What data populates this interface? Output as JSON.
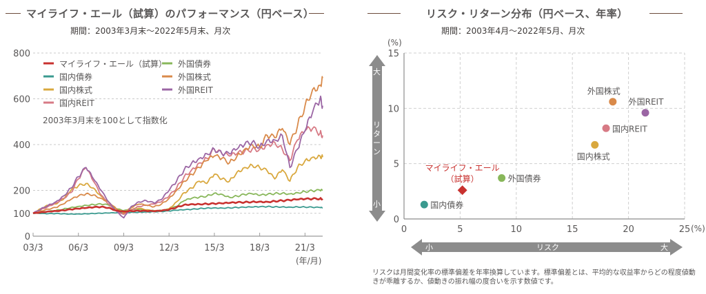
{
  "left": {
    "title": "マイライフ・エール（試算）のパフォーマンス（円ベース）",
    "period": "期間：2003年3月末〜2022年5月末、月次",
    "index_note": "2003年3月末を100として指数化",
    "x_unit": "(年/月)"
  },
  "right": {
    "title": "リスク・リターン分布（円ベース、年率）",
    "period": "期間：2003年4月〜2022年5月、月次",
    "y_unit": "(%)",
    "x_unit": "(%)",
    "y_arrow": {
      "label": "リターン",
      "high": "大",
      "low": "小"
    },
    "x_arrow": {
      "label": "リスク",
      "high": "大",
      "low": "小"
    },
    "footnote": "リスクは月間変化率の標準偏差を年率換算しています。標準偏差とは、平均的な収益率からどの程度値動きが乖離するか、値動きの振れ幅の度合いを示す数値です。"
  },
  "chart_data": [
    {
      "type": "line",
      "title": "マイライフ・エール（試算）のパフォーマンス（円ベース）",
      "subtitle": "期間：2003年3月末〜2022年5月末、月次",
      "xlabel": "(年/月)",
      "ylabel": "",
      "ylim": [
        0,
        800
      ],
      "yticks": [
        0,
        100,
        200,
        400,
        600,
        800
      ],
      "xticks": [
        "03/3",
        "06/3",
        "09/3",
        "12/3",
        "15/3",
        "18/3",
        "21/3"
      ],
      "grid": true,
      "legend": "top-left",
      "x": [
        "03/3",
        "03/9",
        "04/3",
        "04/9",
        "05/3",
        "05/9",
        "06/3",
        "06/9",
        "07/3",
        "07/9",
        "08/3",
        "08/9",
        "09/3",
        "09/9",
        "10/3",
        "10/9",
        "11/3",
        "11/9",
        "12/3",
        "12/9",
        "13/3",
        "13/9",
        "14/3",
        "14/9",
        "15/3",
        "15/9",
        "16/3",
        "16/9",
        "17/3",
        "17/9",
        "18/3",
        "18/9",
        "19/3",
        "19/9",
        "20/3",
        "20/9",
        "21/3",
        "21/9",
        "22/3",
        "22/5"
      ],
      "series": [
        {
          "name": "マイライフ・エール（試算）",
          "color": "#c8312f",
          "values": [
            100,
            104,
            108,
            110,
            113,
            117,
            120,
            123,
            126,
            128,
            124,
            112,
            108,
            110,
            111,
            110,
            109,
            111,
            116,
            126,
            137,
            140,
            140,
            141,
            142,
            143,
            145,
            147,
            148,
            150,
            151,
            150,
            153,
            155,
            157,
            160,
            162,
            163,
            164,
            163
          ]
        },
        {
          "name": "国内債券",
          "color": "#3a9a8f",
          "values": [
            100,
            99,
            98,
            99,
            98,
            97,
            97,
            98,
            99,
            100,
            101,
            102,
            103,
            104,
            105,
            106,
            107,
            108,
            110,
            113,
            115,
            117,
            120,
            123,
            124,
            123,
            124,
            125,
            126,
            127,
            128,
            129,
            128,
            128,
            127,
            128,
            127,
            126,
            125,
            124
          ]
        },
        {
          "name": "国内株式",
          "color": "#d9a83e",
          "values": [
            100,
            120,
            135,
            140,
            160,
            200,
            220,
            230,
            210,
            175,
            150,
            120,
            105,
            118,
            122,
            115,
            110,
            112,
            120,
            150,
            190,
            210,
            240,
            230,
            270,
            250,
            240,
            280,
            300,
            310,
            300,
            285,
            250,
            290,
            240,
            300,
            330,
            345,
            350,
            345
          ]
        },
        {
          "name": "国内REIT",
          "color": "#d77a85",
          "values": [
            100,
            115,
            130,
            145,
            165,
            190,
            250,
            300,
            240,
            180,
            140,
            110,
            95,
            115,
            130,
            135,
            140,
            150,
            175,
            210,
            260,
            290,
            320,
            340,
            380,
            360,
            350,
            360,
            370,
            380,
            380,
            400,
            410,
            380,
            330,
            420,
            460,
            470,
            450,
            440
          ]
        },
        {
          "name": "外国債券",
          "color": "#88b75a",
          "values": [
            100,
            103,
            108,
            112,
            118,
            125,
            130,
            135,
            138,
            140,
            136,
            120,
            112,
            115,
            117,
            115,
            112,
            113,
            118,
            130,
            155,
            165,
            170,
            175,
            188,
            183,
            170,
            175,
            182,
            185,
            178,
            182,
            186,
            188,
            185,
            190,
            195,
            198,
            200,
            200
          ]
        },
        {
          "name": "外国株式",
          "color": "#d98a4a",
          "values": [
            100,
            110,
            118,
            125,
            140,
            160,
            175,
            185,
            180,
            165,
            150,
            120,
            100,
            125,
            140,
            135,
            128,
            140,
            165,
            200,
            240,
            270,
            300,
            330,
            350,
            340,
            320,
            350,
            380,
            400,
            390,
            440,
            430,
            470,
            400,
            480,
            570,
            640,
            660,
            690
          ]
        },
        {
          "name": "外国REIT",
          "color": "#9b66a4",
          "values": [
            100,
            118,
            135,
            150,
            175,
            210,
            260,
            300,
            250,
            200,
            150,
            110,
            80,
            130,
            150,
            155,
            145,
            160,
            200,
            240,
            290,
            320,
            340,
            360,
            380,
            360,
            360,
            380,
            400,
            410,
            390,
            420,
            420,
            440,
            300,
            380,
            460,
            540,
            600,
            570
          ]
        }
      ]
    },
    {
      "type": "scatter",
      "title": "リスク・リターン分布（円ベース、年率）",
      "subtitle": "期間：2003年4月〜2022年5月、月次",
      "xlabel": "リスク (%)",
      "ylabel": "リターン (%)",
      "xlim": [
        0,
        25
      ],
      "ylim": [
        0,
        15
      ],
      "xticks": [
        0,
        5,
        10,
        15,
        20,
        25
      ],
      "yticks": [
        0,
        5,
        10,
        15
      ],
      "grid": true,
      "points": [
        {
          "name": "マイライフ・エール（試算）",
          "label_lines": [
            "マイライフ・エール",
            "（試算）"
          ],
          "x": 5.2,
          "y": 2.6,
          "color": "#c8312f",
          "marker": "diamond",
          "label_pos": "top"
        },
        {
          "name": "国内債券",
          "x": 1.8,
          "y": 1.3,
          "color": "#3a9a8f",
          "marker": "circle",
          "label_pos": "right"
        },
        {
          "name": "外国債券",
          "x": 8.7,
          "y": 3.7,
          "color": "#88b75a",
          "marker": "circle",
          "label_pos": "right"
        },
        {
          "name": "国内株式",
          "x": 17.0,
          "y": 6.7,
          "color": "#d9a83e",
          "marker": "circle",
          "label_pos": "bottom"
        },
        {
          "name": "国内REIT",
          "x": 18.0,
          "y": 8.2,
          "color": "#d77a85",
          "marker": "circle",
          "label_pos": "right"
        },
        {
          "name": "外国株式",
          "x": 18.6,
          "y": 10.6,
          "color": "#d98a4a",
          "marker": "circle",
          "label_pos": "top"
        },
        {
          "name": "外国REIT",
          "x": 21.5,
          "y": 9.6,
          "color": "#9b66a4",
          "marker": "circle",
          "label_pos": "top"
        }
      ]
    }
  ]
}
